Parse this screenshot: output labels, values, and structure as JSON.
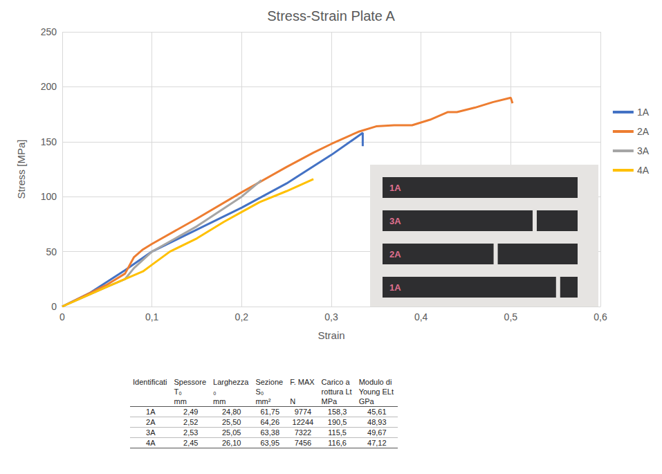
{
  "chart_data": {
    "type": "line",
    "title": "Stress-Strain Plate A",
    "x_label": "Strain",
    "y_label": "Stress [MPa]",
    "xlim": [
      0,
      0.6
    ],
    "xticks": [
      0,
      {
        "value": 0.1,
        "label": "0,1"
      },
      {
        "value": 0.2,
        "label": "0,2"
      },
      {
        "value": 0.3,
        "label": "0,3"
      },
      {
        "value": 0.4,
        "label": "0,4"
      },
      {
        "value": 0.5,
        "label": "0,5"
      },
      {
        "value": 0.6,
        "label": "0,6"
      }
    ],
    "ylim": [
      0,
      250
    ],
    "yticks": [
      0,
      50,
      100,
      150,
      200,
      250
    ],
    "grid": true,
    "legend": "right",
    "series": [
      {
        "name": "1A",
        "color": "#4472c4",
        "x": [
          0,
          0.03,
          0.07,
          0.1,
          0.15,
          0.2,
          0.25,
          0.3,
          0.335,
          0.335
        ],
        "values": [
          0,
          12,
          33,
          50,
          70,
          90,
          112,
          138,
          158,
          146
        ]
      },
      {
        "name": "2A",
        "color": "#ed7d31",
        "x": [
          0,
          0.05,
          0.07,
          0.08,
          0.09,
          0.1,
          0.15,
          0.2,
          0.25,
          0.28,
          0.3,
          0.33,
          0.35,
          0.37,
          0.39,
          0.41,
          0.43,
          0.44,
          0.46,
          0.48,
          0.5,
          0.502
        ],
        "values": [
          0,
          20,
          30,
          45,
          52,
          57,
          80,
          104,
          127,
          140,
          148,
          159,
          164,
          165,
          165,
          170,
          177,
          177,
          181,
          186,
          190,
          185
        ]
      },
      {
        "name": "3A",
        "color": "#a5a5a5",
        "x": [
          0,
          0.05,
          0.07,
          0.08,
          0.1,
          0.15,
          0.2,
          0.222
        ],
        "values": [
          0,
          18,
          25,
          35,
          50,
          73,
          100,
          115
        ]
      },
      {
        "name": "4A",
        "color": "#ffc000",
        "x": [
          0,
          0.05,
          0.09,
          0.1,
          0.12,
          0.15,
          0.18,
          0.2,
          0.22,
          0.25,
          0.28
        ],
        "values": [
          0,
          18,
          32,
          38,
          50,
          62,
          77,
          86,
          95,
          105,
          116
        ]
      }
    ],
    "annotations": [
      "1A",
      "3A",
      "2A",
      "1A"
    ]
  },
  "table": {
    "columns": [
      [
        "Identificati"
      ],
      [
        "Spessore",
        "T₀",
        "mm"
      ],
      [
        "Larghezza",
        "₀",
        "mm"
      ],
      [
        "Sezione",
        "S₀",
        "mm²"
      ],
      [
        "F. MAX",
        "N"
      ],
      [
        "Carico a",
        "rottura Lt",
        "MPa"
      ],
      [
        "Modulo di",
        "Young ELt",
        "GPa"
      ]
    ],
    "rows": [
      [
        "1A",
        "2,49",
        "24,80",
        "61,75",
        "9774",
        "158,3",
        "45,61"
      ],
      [
        "2A",
        "2,52",
        "25,50",
        "64,26",
        "12244",
        "190,5",
        "48,93"
      ],
      [
        "3A",
        "2,53",
        "25,05",
        "63,38",
        "7322",
        "115,5",
        "49,67"
      ],
      [
        "4A",
        "2,45",
        "26,10",
        "63,95",
        "7456",
        "116,6",
        "47,12"
      ]
    ]
  }
}
